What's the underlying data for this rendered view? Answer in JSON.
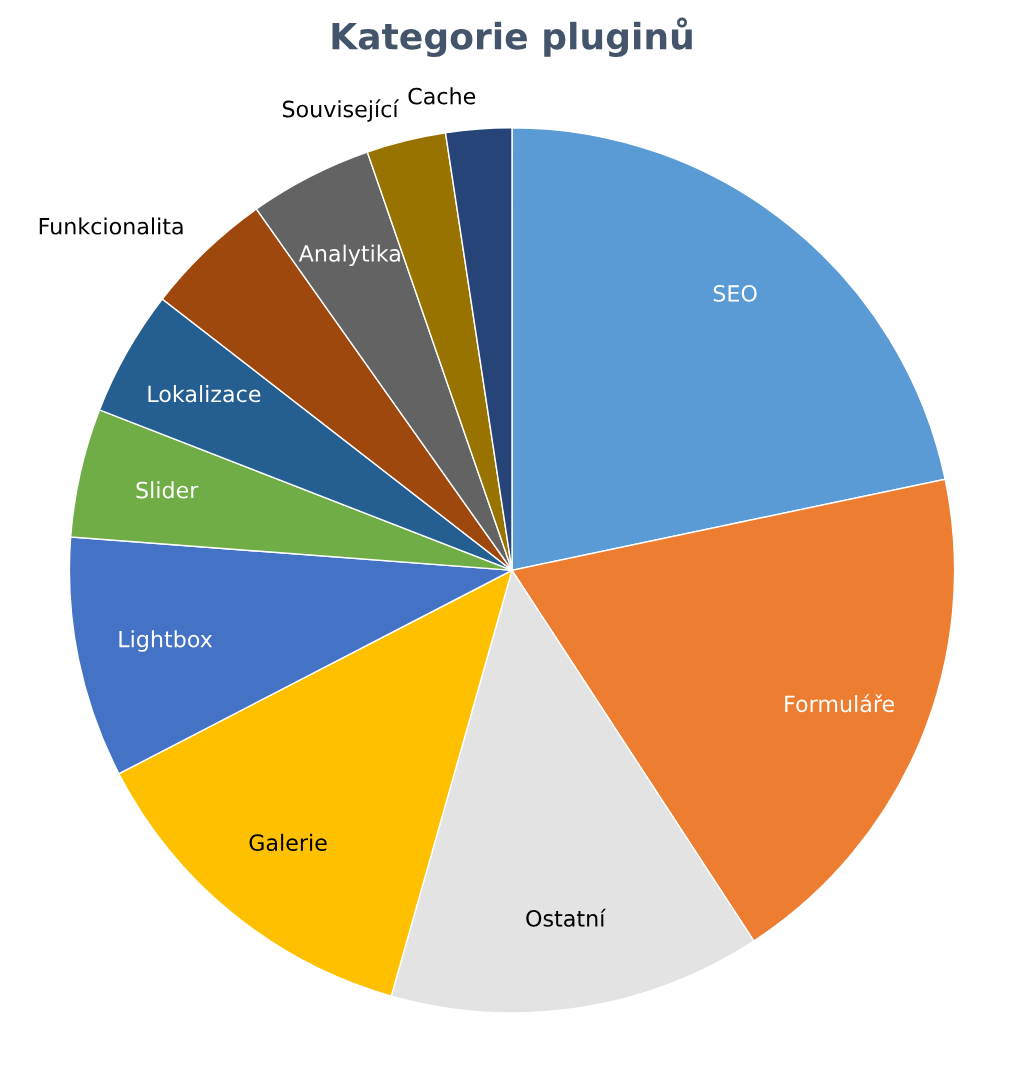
{
  "chart_data": {
    "type": "pie",
    "title": "Kategorie pluginů",
    "categories": [
      "SEO",
      "Formuláře",
      "Ostatní",
      "Galerie",
      "Lightbox",
      "Slider",
      "Lokalizace",
      "Funkcionalita",
      "Analytika",
      "Související",
      "Cache"
    ],
    "values": [
      21.7,
      19.1,
      13.6,
      13.0,
      8.8,
      4.7,
      4.6,
      4.7,
      4.5,
      2.9,
      2.4
    ],
    "colors": [
      "#5b9bd5",
      "#ed7d31",
      "#e3e3e3",
      "#ffc000",
      "#4472c4",
      "#70ad47",
      "#255e91",
      "#9e480e",
      "#636363",
      "#997300",
      "#264478"
    ]
  }
}
